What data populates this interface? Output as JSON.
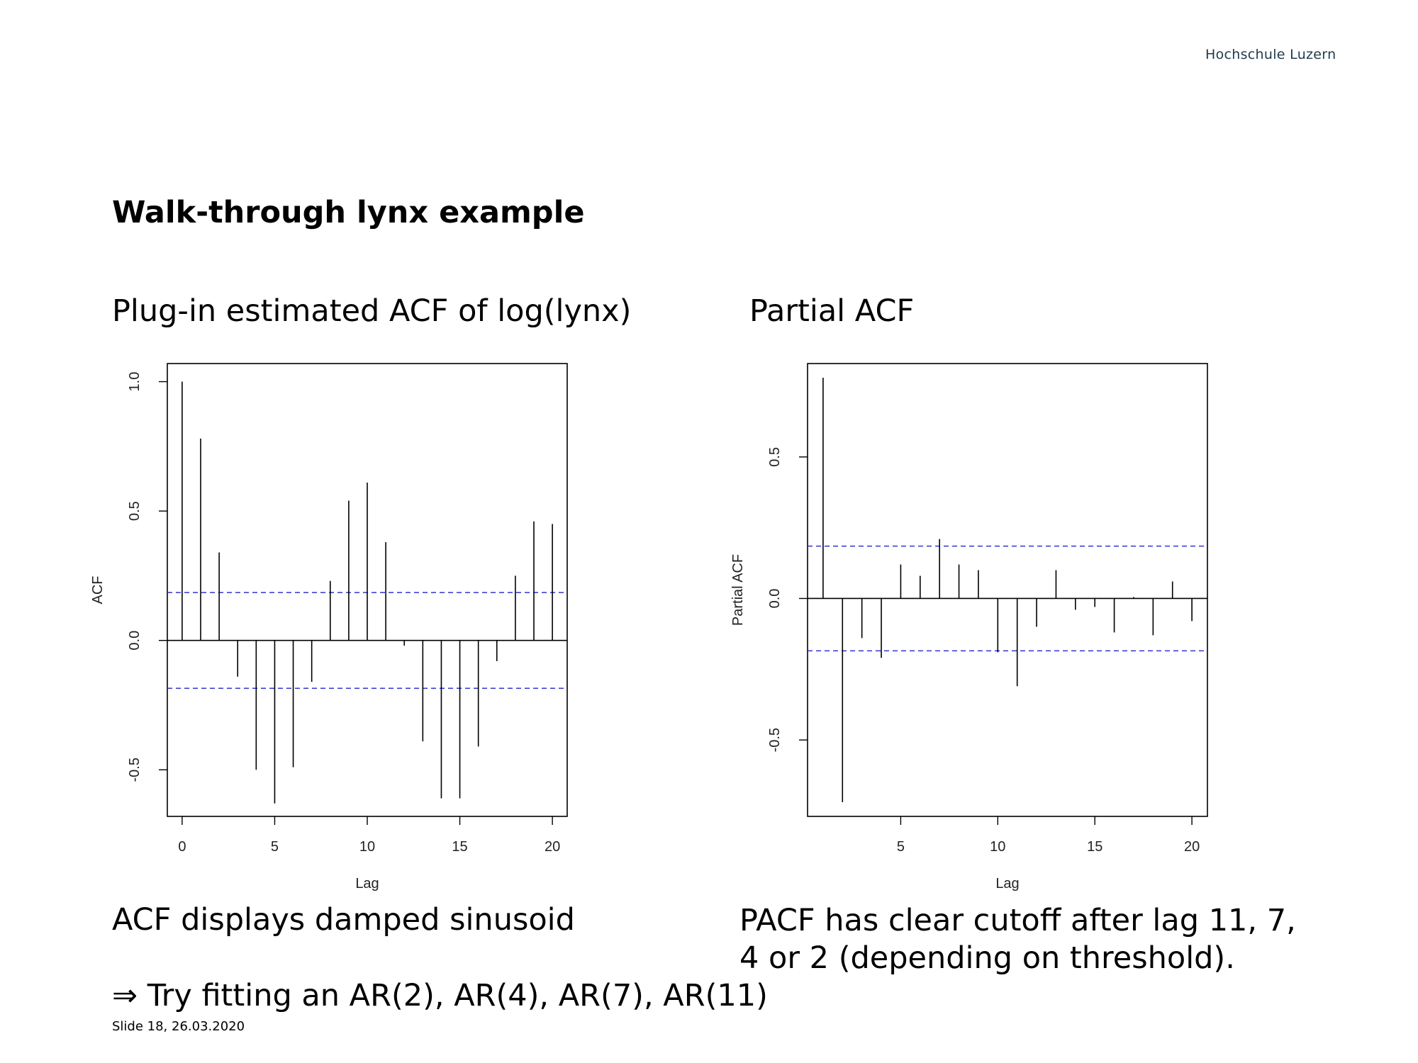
{
  "header": {
    "logo_text": "Hochschule Luzern"
  },
  "slide": {
    "title": "Walk-through lynx example",
    "acf_heading": "Plug-in estimated ACF of log(lynx)",
    "pacf_heading": "Partial ACF",
    "acf_note": "ACF displays damped sinusoid",
    "pacf_note_line1": "PACF has clear cutoff after lag 11, 7,",
    "pacf_note_line2": "4 or 2 (depending on threshold).",
    "conclusion": "⇒ Try fitting an AR(2), AR(4), AR(7), AR(11)",
    "footer": "Slide 18, 26.03.2020"
  },
  "colors": {
    "confidence_band": "#3333cc",
    "bars": "#000000"
  },
  "chart_data": [
    {
      "type": "bar",
      "title": "",
      "xlabel": "Lag",
      "ylabel": "ACF",
      "xlim": [
        -0.8,
        20.8
      ],
      "ylim": [
        -0.68,
        1.07
      ],
      "xticks": [
        "0",
        "5",
        "10",
        "15",
        "20"
      ],
      "yticks": [
        "-0.5",
        "0.0",
        "0.5",
        "1.0"
      ],
      "confidence_band": 0.185,
      "lags": [
        0,
        1,
        2,
        3,
        4,
        5,
        6,
        7,
        8,
        9,
        10,
        11,
        12,
        13,
        14,
        15,
        16,
        17,
        18,
        19,
        20
      ],
      "values": [
        1.0,
        0.78,
        0.34,
        -0.14,
        -0.5,
        -0.63,
        -0.49,
        -0.16,
        0.23,
        0.54,
        0.61,
        0.38,
        -0.02,
        -0.39,
        -0.61,
        -0.61,
        -0.41,
        -0.08,
        0.25,
        0.46,
        0.45
      ]
    },
    {
      "type": "bar",
      "title": "",
      "xlabel": "Lag",
      "ylabel": "Partial ACF",
      "xlim": [
        0.2,
        20.8
      ],
      "ylim": [
        -0.77,
        0.83
      ],
      "xticks": [
        "5",
        "10",
        "15",
        "20"
      ],
      "yticks": [
        "-0.5",
        "0.0",
        "0.5"
      ],
      "confidence_band": 0.185,
      "lags": [
        1,
        2,
        3,
        4,
        5,
        6,
        7,
        8,
        9,
        10,
        11,
        12,
        13,
        14,
        15,
        16,
        17,
        18,
        19,
        20
      ],
      "values": [
        0.78,
        -0.72,
        -0.14,
        -0.21,
        0.12,
        0.08,
        0.21,
        0.12,
        0.1,
        -0.19,
        -0.31,
        -0.1,
        0.1,
        -0.04,
        -0.03,
        -0.12,
        0.005,
        -0.13,
        0.06,
        -0.08
      ]
    }
  ]
}
